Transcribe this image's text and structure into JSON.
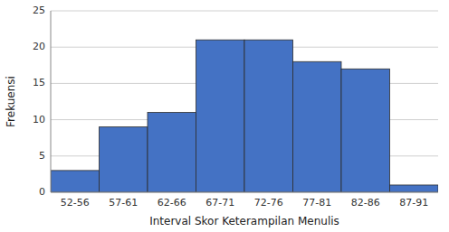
{
  "chart_data": {
    "type": "bar",
    "xlabel": "Interval Skor Keterampilan Menulis",
    "ylabel": "Frekuensi",
    "categories": [
      "52-56",
      "57-61",
      "62-66",
      "67-71",
      "72-76",
      "77-81",
      "82-86",
      "87-91"
    ],
    "values": [
      3,
      9,
      11,
      21,
      21,
      18,
      17,
      1
    ],
    "color": "#4472C4",
    "ylim": [
      0,
      25
    ],
    "yticks": [
      0,
      5,
      10,
      15,
      20,
      25
    ],
    "grid": true
  }
}
